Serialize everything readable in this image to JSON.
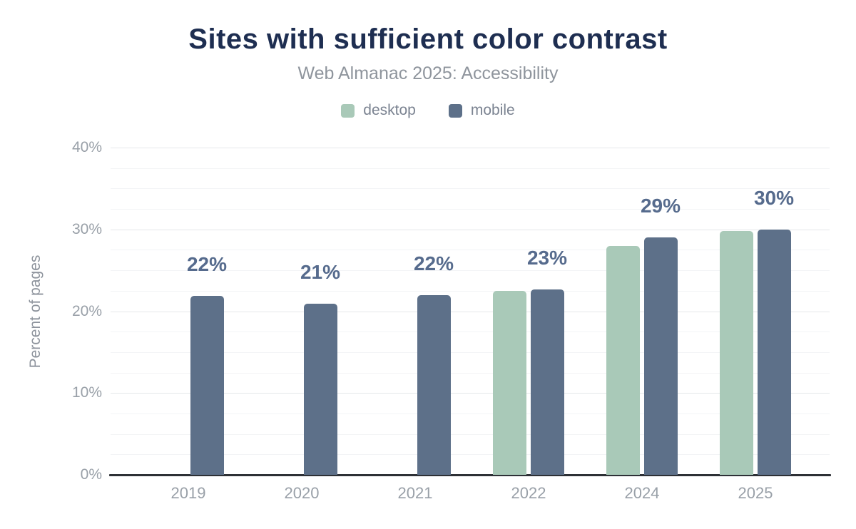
{
  "chart_data": {
    "type": "bar",
    "title": "Sites with sufficient color contrast",
    "subtitle": "Web Almanac 2025: Accessibility",
    "xlabel": "",
    "ylabel": "Percent of pages",
    "ylim": [
      0,
      40
    ],
    "y_major_step": 10,
    "y_minor_step": 2.5,
    "y_ticks": [
      0,
      10,
      20,
      30,
      40
    ],
    "y_tick_labels": [
      "0%",
      "10%",
      "20%",
      "30%",
      "40%"
    ],
    "grid": true,
    "legend_position": "top",
    "categories": [
      "2019",
      "2020",
      "2021",
      "2022",
      "2024",
      "2025"
    ],
    "series": [
      {
        "name": "desktop",
        "color": "#a9c9b8",
        "values": [
          null,
          null,
          null,
          22.5,
          28.0,
          29.8
        ]
      },
      {
        "name": "mobile",
        "color": "#5d7089",
        "values": [
          21.9,
          20.9,
          22.0,
          22.7,
          29.0,
          30.0
        ]
      }
    ],
    "data_labels": [
      "22%",
      "21%",
      "22%",
      "23%",
      "29%",
      "30%"
    ],
    "data_label_series": "mobile"
  },
  "colors": {
    "title": "#1e2e51",
    "subtitle": "#8f959d",
    "legend_text": "#7b8391",
    "tick_text": "#99a0a8",
    "axis_line": "#2d3035",
    "grid_major": "#e5e7ea",
    "grid_minor": "#f3f4f6",
    "data_label": "#566b8d",
    "background": "#ffffff"
  }
}
